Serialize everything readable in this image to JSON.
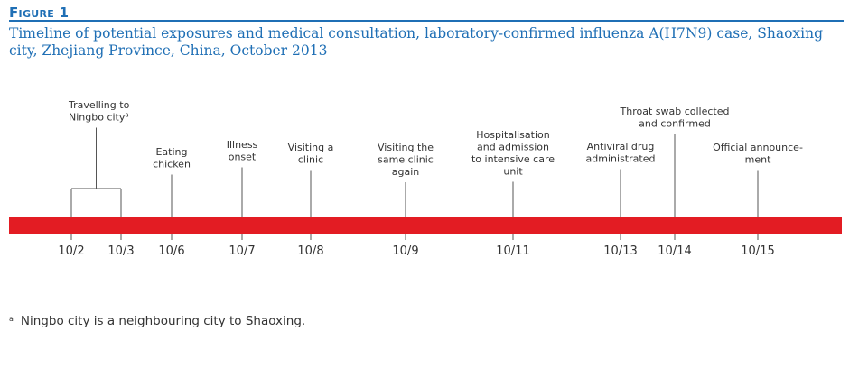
{
  "figure": {
    "label": "Figure 1",
    "title": "Timeline of potential exposures and medical consultation, laboratory-confirmed influenza A(H7N9) case, Shaoxing city, Zhejiang Province, China, October 2013"
  },
  "timeline": {
    "bar_color": "#e31c23",
    "accent_color": "#1f6fb5",
    "dates": [
      "10/2",
      "10/3",
      "10/6",
      "10/7",
      "10/8",
      "10/9",
      "10/11",
      "10/13",
      "10/14",
      "10/15"
    ],
    "events": [
      {
        "id": "travel",
        "lines": [
          "Travelling to",
          "Ningbo city"
        ],
        "sup": "a",
        "dates": [
          "10/2",
          "10/3"
        ]
      },
      {
        "id": "eating",
        "lines": [
          "Eating",
          "chicken"
        ],
        "dates": [
          "10/6"
        ]
      },
      {
        "id": "onset",
        "lines": [
          "Illness",
          "onset"
        ],
        "dates": [
          "10/7"
        ]
      },
      {
        "id": "clinic",
        "lines": [
          "Visiting a",
          "clinic"
        ],
        "dates": [
          "10/8"
        ]
      },
      {
        "id": "clinic-again",
        "lines": [
          "Visiting the",
          "same clinic",
          "again"
        ],
        "dates": [
          "10/9"
        ]
      },
      {
        "id": "hospital",
        "lines": [
          "Hospitalisation",
          "and  admission",
          "to intensive care",
          "unit"
        ],
        "dates": [
          "10/11"
        ]
      },
      {
        "id": "antiviral",
        "lines": [
          "Antiviral drug",
          "administrated"
        ],
        "dates": [
          "10/13"
        ]
      },
      {
        "id": "swab",
        "lines": [
          "Throat swab collected",
          "and confirmed"
        ],
        "dates": [
          "10/14"
        ]
      },
      {
        "id": "announcement",
        "lines": [
          "Official announce-",
          "ment"
        ],
        "dates": [
          "10/15"
        ]
      }
    ]
  },
  "footnote": {
    "marker": "a",
    "text": "Ningbo city is a neighbouring city to Shaoxing."
  }
}
